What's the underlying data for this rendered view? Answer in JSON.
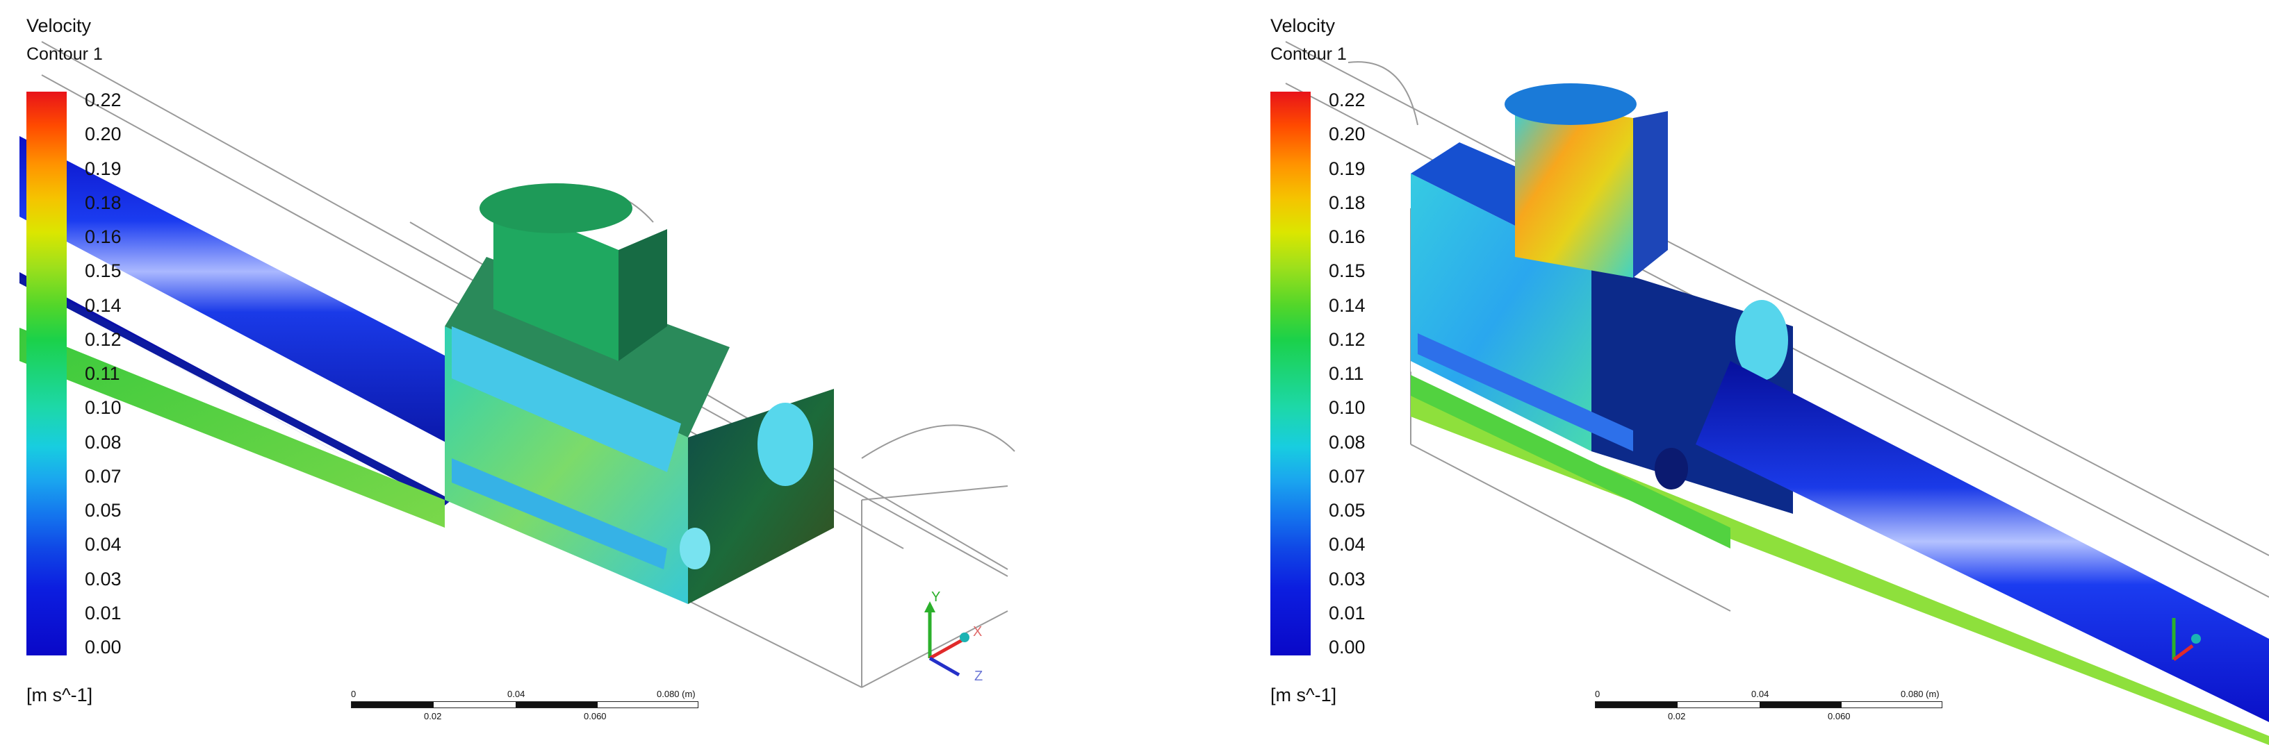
{
  "panels": [
    {
      "title": "Velocity",
      "subtitle": "Contour 1",
      "units": "[m s^-1]",
      "legend_ticks": [
        "0.22",
        "0.20",
        "0.19",
        "0.18",
        "0.16",
        "0.15",
        "0.14",
        "0.12",
        "0.11",
        "0.10",
        "0.08",
        "0.07",
        "0.05",
        "0.04",
        "0.03",
        "0.01",
        "0.00"
      ],
      "scale": {
        "top": [
          "0",
          "0.04",
          "0.080 (m)"
        ],
        "bottom": [
          "0.02",
          "0.060"
        ]
      },
      "axes": {
        "x": "X",
        "y": "Y",
        "z": "Z"
      }
    },
    {
      "title": "Velocity",
      "subtitle": "Contour 1",
      "units": "[m s^-1]",
      "legend_ticks": [
        "0.22",
        "0.20",
        "0.19",
        "0.18",
        "0.16",
        "0.15",
        "0.14",
        "0.12",
        "0.11",
        "0.10",
        "0.08",
        "0.07",
        "0.05",
        "0.04",
        "0.03",
        "0.01",
        "0.00"
      ],
      "scale": {
        "top": [
          "0",
          "0.04",
          "0.080 (m)"
        ],
        "bottom": [
          "0.02",
          "0.060"
        ]
      }
    }
  ]
}
